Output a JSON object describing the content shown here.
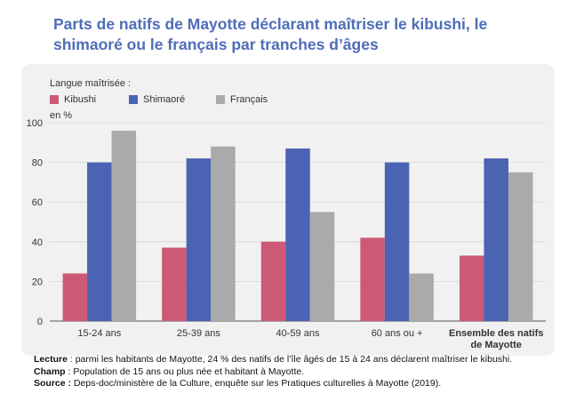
{
  "title": "Parts de natifs de Mayotte déclarant maîtriser le kibushi, le shimaoré ou le français par tranches d’âges",
  "legend_title": "Langue maîtrisée :",
  "unit_label": "en %",
  "colors": {
    "Kibushi": "#cc5a77",
    "Shimaoré": "#4a63b3",
    "Français": "#aaaaaa"
  },
  "chart_data": {
    "type": "bar",
    "categories": [
      "15-24 ans",
      "25-39 ans",
      "40-59 ans",
      "60 ans ou +",
      "Ensemble des natifs de Mayotte"
    ],
    "series": [
      {
        "name": "Kibushi",
        "values": [
          24,
          37,
          40,
          42,
          33
        ]
      },
      {
        "name": "Shimaoré",
        "values": [
          80,
          82,
          87,
          80,
          82
        ]
      },
      {
        "name": "Français",
        "values": [
          96,
          88,
          55,
          24,
          75
        ]
      }
    ],
    "ylim": [
      0,
      100
    ],
    "yticks": [
      0,
      20,
      40,
      60,
      80,
      100
    ],
    "grid": true,
    "legend_position": "top-left"
  },
  "notes": {
    "lecture_label": "Lecture",
    "lecture_text": " : parmi les habitants de Mayotte, 24 % des natifs de l’île âgés de 15 à 24 ans déclarent maîtriser le kibushi.",
    "champ_label": "Champ",
    "champ_text": " : Population de 15 ans ou plus née et habitant à Mayotte.",
    "source_label": "Source :",
    "source_text": " Deps-doc/ministère de la Culture, enquête sur les Pratiques culturelles à Mayotte (2019)."
  }
}
